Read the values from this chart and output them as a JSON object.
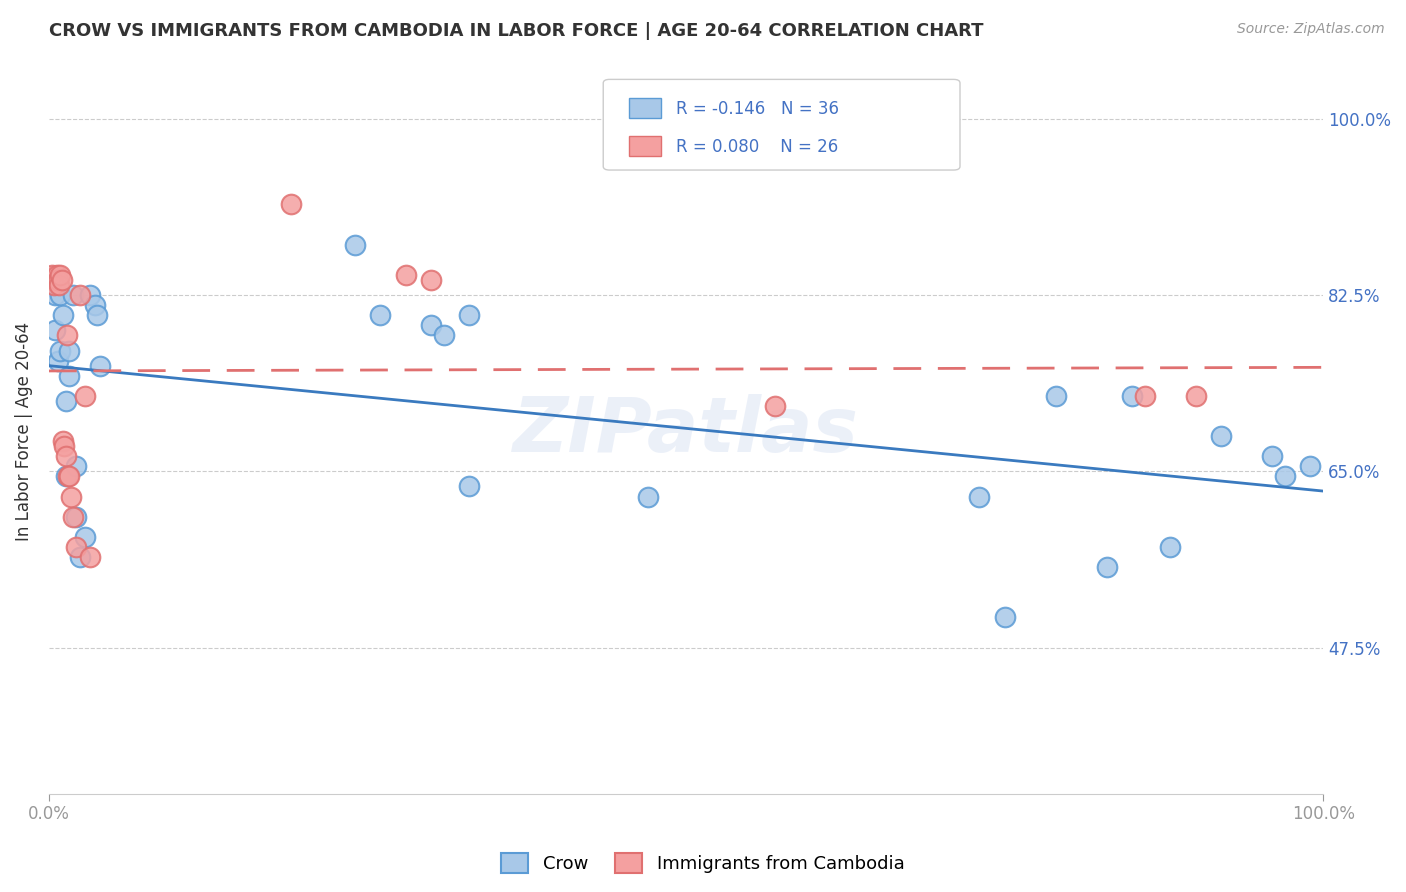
{
  "title": "CROW VS IMMIGRANTS FROM CAMBODIA IN LABOR FORCE | AGE 20-64 CORRELATION CHART",
  "source": "Source: ZipAtlas.com",
  "ylabel": "In Labor Force | Age 20-64",
  "legend_label1": "Crow",
  "legend_label2": "Immigrants from Cambodia",
  "R1": "-0.146",
  "N1": "36",
  "R2": "0.080",
  "N2": "26",
  "crow_fill": "#a8c8e8",
  "crow_edge": "#5b9bd5",
  "cambodia_fill": "#f4a0a0",
  "cambodia_edge": "#e07070",
  "crow_line_color": "#3a7abf",
  "cambodia_line_color": "#e07070",
  "text_blue": "#4472c4",
  "watermark": "ZIPatlas",
  "xlim": [
    0.0,
    1.0
  ],
  "ylim": [
    0.33,
    1.05
  ],
  "y_ticks": [
    0.475,
    0.65,
    0.825,
    1.0
  ],
  "y_tick_labels": [
    "47.5%",
    "65.0%",
    "82.5%",
    "100.0%"
  ],
  "crow_x": [
    0.005,
    0.005,
    0.007,
    0.009,
    0.009,
    0.011,
    0.013,
    0.013,
    0.016,
    0.016,
    0.019,
    0.021,
    0.021,
    0.024,
    0.028,
    0.032,
    0.036,
    0.038,
    0.04,
    0.24,
    0.26,
    0.3,
    0.31,
    0.33,
    0.33,
    0.47,
    0.73,
    0.75,
    0.79,
    0.83,
    0.85,
    0.88,
    0.92,
    0.96,
    0.97,
    0.99
  ],
  "crow_y": [
    0.825,
    0.79,
    0.76,
    0.825,
    0.77,
    0.805,
    0.72,
    0.645,
    0.77,
    0.745,
    0.825,
    0.655,
    0.605,
    0.565,
    0.585,
    0.825,
    0.815,
    0.805,
    0.755,
    0.875,
    0.805,
    0.795,
    0.785,
    0.635,
    0.805,
    0.625,
    0.625,
    0.505,
    0.725,
    0.555,
    0.725,
    0.575,
    0.685,
    0.665,
    0.645,
    0.655
  ],
  "cambodia_x": [
    0.002,
    0.003,
    0.004,
    0.006,
    0.007,
    0.008,
    0.009,
    0.01,
    0.011,
    0.012,
    0.013,
    0.014,
    0.015,
    0.016,
    0.017,
    0.019,
    0.021,
    0.024,
    0.028,
    0.032,
    0.19,
    0.28,
    0.3,
    0.57,
    0.86,
    0.9
  ],
  "cambodia_y": [
    0.845,
    0.84,
    0.835,
    0.845,
    0.84,
    0.835,
    0.845,
    0.84,
    0.68,
    0.675,
    0.665,
    0.785,
    0.645,
    0.645,
    0.625,
    0.605,
    0.575,
    0.825,
    0.725,
    0.565,
    0.915,
    0.845,
    0.84,
    0.715,
    0.725,
    0.725
  ]
}
